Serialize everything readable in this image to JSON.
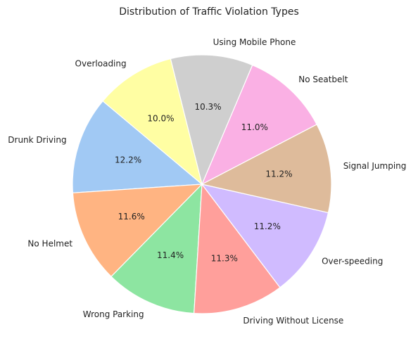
{
  "chart_data": {
    "type": "pie",
    "title": "Distribution of Traffic Violation Types",
    "categories": [
      "Drunk Driving",
      "No Helmet",
      "Wrong Parking",
      "Driving Without License",
      "Over-speeding",
      "Signal Jumping",
      "No Seatbelt",
      "Using Mobile Phone",
      "Overloading"
    ],
    "values": [
      12.2,
      11.6,
      11.4,
      11.3,
      11.2,
      11.2,
      11.0,
      10.3,
      10.0
    ],
    "value_labels": [
      "12.2%",
      "11.6%",
      "11.4%",
      "11.3%",
      "11.2%",
      "11.2%",
      "11.0%",
      "10.3%",
      "10.0%"
    ],
    "colors": [
      "#a1c9f4",
      "#ffb482",
      "#8de5a1",
      "#ff9f9b",
      "#d0bbff",
      "#debb9b",
      "#fab0e4",
      "#cfcfcf",
      "#fffea3"
    ],
    "start_angle_deg": 140,
    "direction": "counterclockwise",
    "legend": "none"
  }
}
